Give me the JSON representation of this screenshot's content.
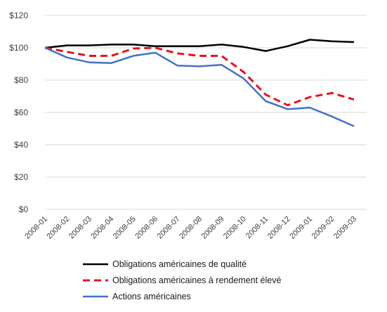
{
  "chart_data": {
    "type": "line",
    "x": [
      "2008-01",
      "2008-02",
      "2008-03",
      "2008-04",
      "2008-05",
      "2008-06",
      "2008-07",
      "2008-08",
      "2008-09",
      "2008-10",
      "2008-11",
      "2008-12",
      "2009-01",
      "2009-02",
      "2009-03"
    ],
    "y_ticks": [
      "$0",
      "$20",
      "$40",
      "$60",
      "$80",
      "$100",
      "$120"
    ],
    "ylim": [
      0,
      120
    ],
    "grid": true,
    "legend_position": "bottom",
    "series": [
      {
        "name": "Obligations américaines de qualité",
        "color": "#000000",
        "dash": "solid",
        "values": [
          100,
          101.5,
          101.5,
          102,
          102,
          101,
          101,
          101,
          102,
          100.5,
          98,
          101,
          105,
          104,
          103.5
        ]
      },
      {
        "name": "Obligations américaines à rendement élevé",
        "color": "#e8141b",
        "dash": "dashed",
        "values": [
          100,
          97.5,
          95,
          95,
          99.5,
          100,
          96.5,
          95,
          95,
          85,
          71,
          64.5,
          69.5,
          72,
          68
        ]
      },
      {
        "name": "Actions américaines",
        "color": "#4472c4",
        "dash": "solid",
        "values": [
          100,
          94,
          91,
          90.5,
          95,
          97,
          89,
          88.5,
          89.5,
          81,
          67,
          62,
          63,
          57.5,
          51.5
        ]
      }
    ]
  }
}
